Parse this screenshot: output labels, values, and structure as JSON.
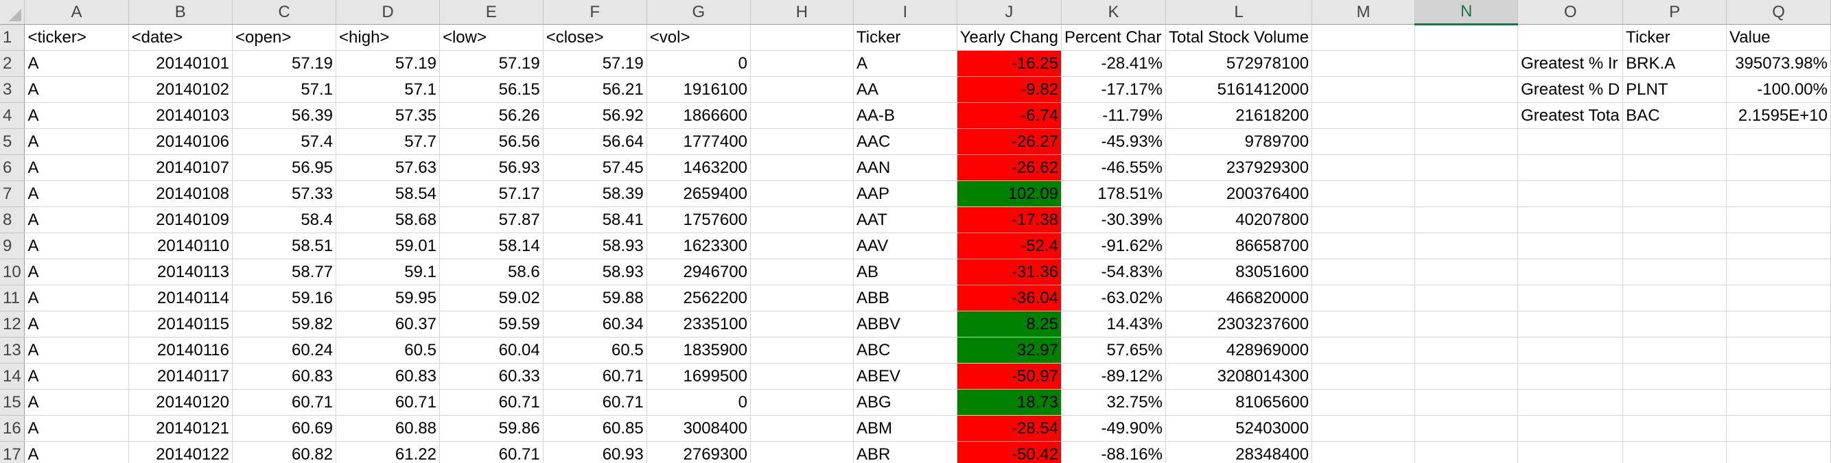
{
  "columns": [
    "A",
    "B",
    "C",
    "D",
    "E",
    "F",
    "G",
    "H",
    "I",
    "J",
    "K",
    "L",
    "M",
    "N",
    "O",
    "P",
    "Q"
  ],
  "selected_column": "N",
  "header_row": {
    "A": "<ticker>",
    "B": "<date>",
    "C": "<open>",
    "D": "<high>",
    "E": "<low>",
    "F": "<close>",
    "G": "<vol>",
    "I": "Ticker",
    "J": "Yearly Chang",
    "K": "Percent Char",
    "L": "Total Stock Volume",
    "P": "Ticker",
    "Q": "Value"
  },
  "raw_rows": [
    [
      "A",
      "20140101",
      "57.19",
      "57.19",
      "57.19",
      "57.19",
      "0"
    ],
    [
      "A",
      "20140102",
      "57.1",
      "57.1",
      "56.15",
      "56.21",
      "1916100"
    ],
    [
      "A",
      "20140103",
      "56.39",
      "57.35",
      "56.26",
      "56.92",
      "1866600"
    ],
    [
      "A",
      "20140106",
      "57.4",
      "57.7",
      "56.56",
      "56.64",
      "1777400"
    ],
    [
      "A",
      "20140107",
      "56.95",
      "57.63",
      "56.93",
      "57.45",
      "1463200"
    ],
    [
      "A",
      "20140108",
      "57.33",
      "58.54",
      "57.17",
      "58.39",
      "2659400"
    ],
    [
      "A",
      "20140109",
      "58.4",
      "58.68",
      "57.87",
      "58.41",
      "1757600"
    ],
    [
      "A",
      "20140110",
      "58.51",
      "59.01",
      "58.14",
      "58.93",
      "1623300"
    ],
    [
      "A",
      "20140113",
      "58.77",
      "59.1",
      "58.6",
      "58.93",
      "2946700"
    ],
    [
      "A",
      "20140114",
      "59.16",
      "59.95",
      "59.02",
      "59.88",
      "2562200"
    ],
    [
      "A",
      "20140115",
      "59.82",
      "60.37",
      "59.59",
      "60.34",
      "2335100"
    ],
    [
      "A",
      "20140116",
      "60.24",
      "60.5",
      "60.04",
      "60.5",
      "1835900"
    ],
    [
      "A",
      "20140117",
      "60.83",
      "60.83",
      "60.33",
      "60.71",
      "1699500"
    ],
    [
      "A",
      "20140120",
      "60.71",
      "60.71",
      "60.71",
      "60.71",
      "0"
    ],
    [
      "A",
      "20140121",
      "60.69",
      "60.88",
      "59.86",
      "60.85",
      "3008400"
    ],
    [
      "A",
      "20140122",
      "60.82",
      "61.22",
      "60.71",
      "60.93",
      "2769300"
    ]
  ],
  "summary_rows": [
    {
      "ticker": "A",
      "change": "-16.25",
      "color": "red",
      "pct": "-28.41%",
      "volume": "572978100"
    },
    {
      "ticker": "AA",
      "change": "-9.82",
      "color": "red",
      "pct": "-17.17%",
      "volume": "5161412000"
    },
    {
      "ticker": "AA-B",
      "change": "-6.74",
      "color": "red",
      "pct": "-11.79%",
      "volume": "21618200"
    },
    {
      "ticker": "AAC",
      "change": "-26.27",
      "color": "red",
      "pct": "-45.93%",
      "volume": "9789700"
    },
    {
      "ticker": "AAN",
      "change": "-26.62",
      "color": "red",
      "pct": "-46.55%",
      "volume": "237929300"
    },
    {
      "ticker": "AAP",
      "change": "102.09",
      "color": "green",
      "pct": "178.51%",
      "volume": "200376400"
    },
    {
      "ticker": "AAT",
      "change": "-17.38",
      "color": "red",
      "pct": "-30.39%",
      "volume": "40207800"
    },
    {
      "ticker": "AAV",
      "change": "-52.4",
      "color": "red",
      "pct": "-91.62%",
      "volume": "86658700"
    },
    {
      "ticker": "AB",
      "change": "-31.36",
      "color": "red",
      "pct": "-54.83%",
      "volume": "83051600"
    },
    {
      "ticker": "ABB",
      "change": "-36.04",
      "color": "red",
      "pct": "-63.02%",
      "volume": "466820000"
    },
    {
      "ticker": "ABBV",
      "change": "8.25",
      "color": "green",
      "pct": "14.43%",
      "volume": "2303237600"
    },
    {
      "ticker": "ABC",
      "change": "32.97",
      "color": "green",
      "pct": "57.65%",
      "volume": "428969000"
    },
    {
      "ticker": "ABEV",
      "change": "-50.97",
      "color": "red",
      "pct": "-89.12%",
      "volume": "3208014300"
    },
    {
      "ticker": "ABG",
      "change": "18.73",
      "color": "green",
      "pct": "32.75%",
      "volume": "81065600"
    },
    {
      "ticker": "ABM",
      "change": "-28.54",
      "color": "red",
      "pct": "-49.90%",
      "volume": "52403000"
    },
    {
      "ticker": "ABR",
      "change": "-50.42",
      "color": "red",
      "pct": "-88.16%",
      "volume": "28348400"
    }
  ],
  "greatest": [
    {
      "label": "Greatest % Ir",
      "ticker": "BRK.A",
      "value": "395073.98%"
    },
    {
      "label": "Greatest % D",
      "ticker": "PLNT",
      "value": "-100.00%"
    },
    {
      "label": "Greatest Tota",
      "ticker": "BAC",
      "value": "2.1595E+10"
    }
  ],
  "colors": {
    "positive": "#008000",
    "negative": "#ff0000",
    "header_bg": "#e6e6e6",
    "selected_header": "#217346"
  }
}
